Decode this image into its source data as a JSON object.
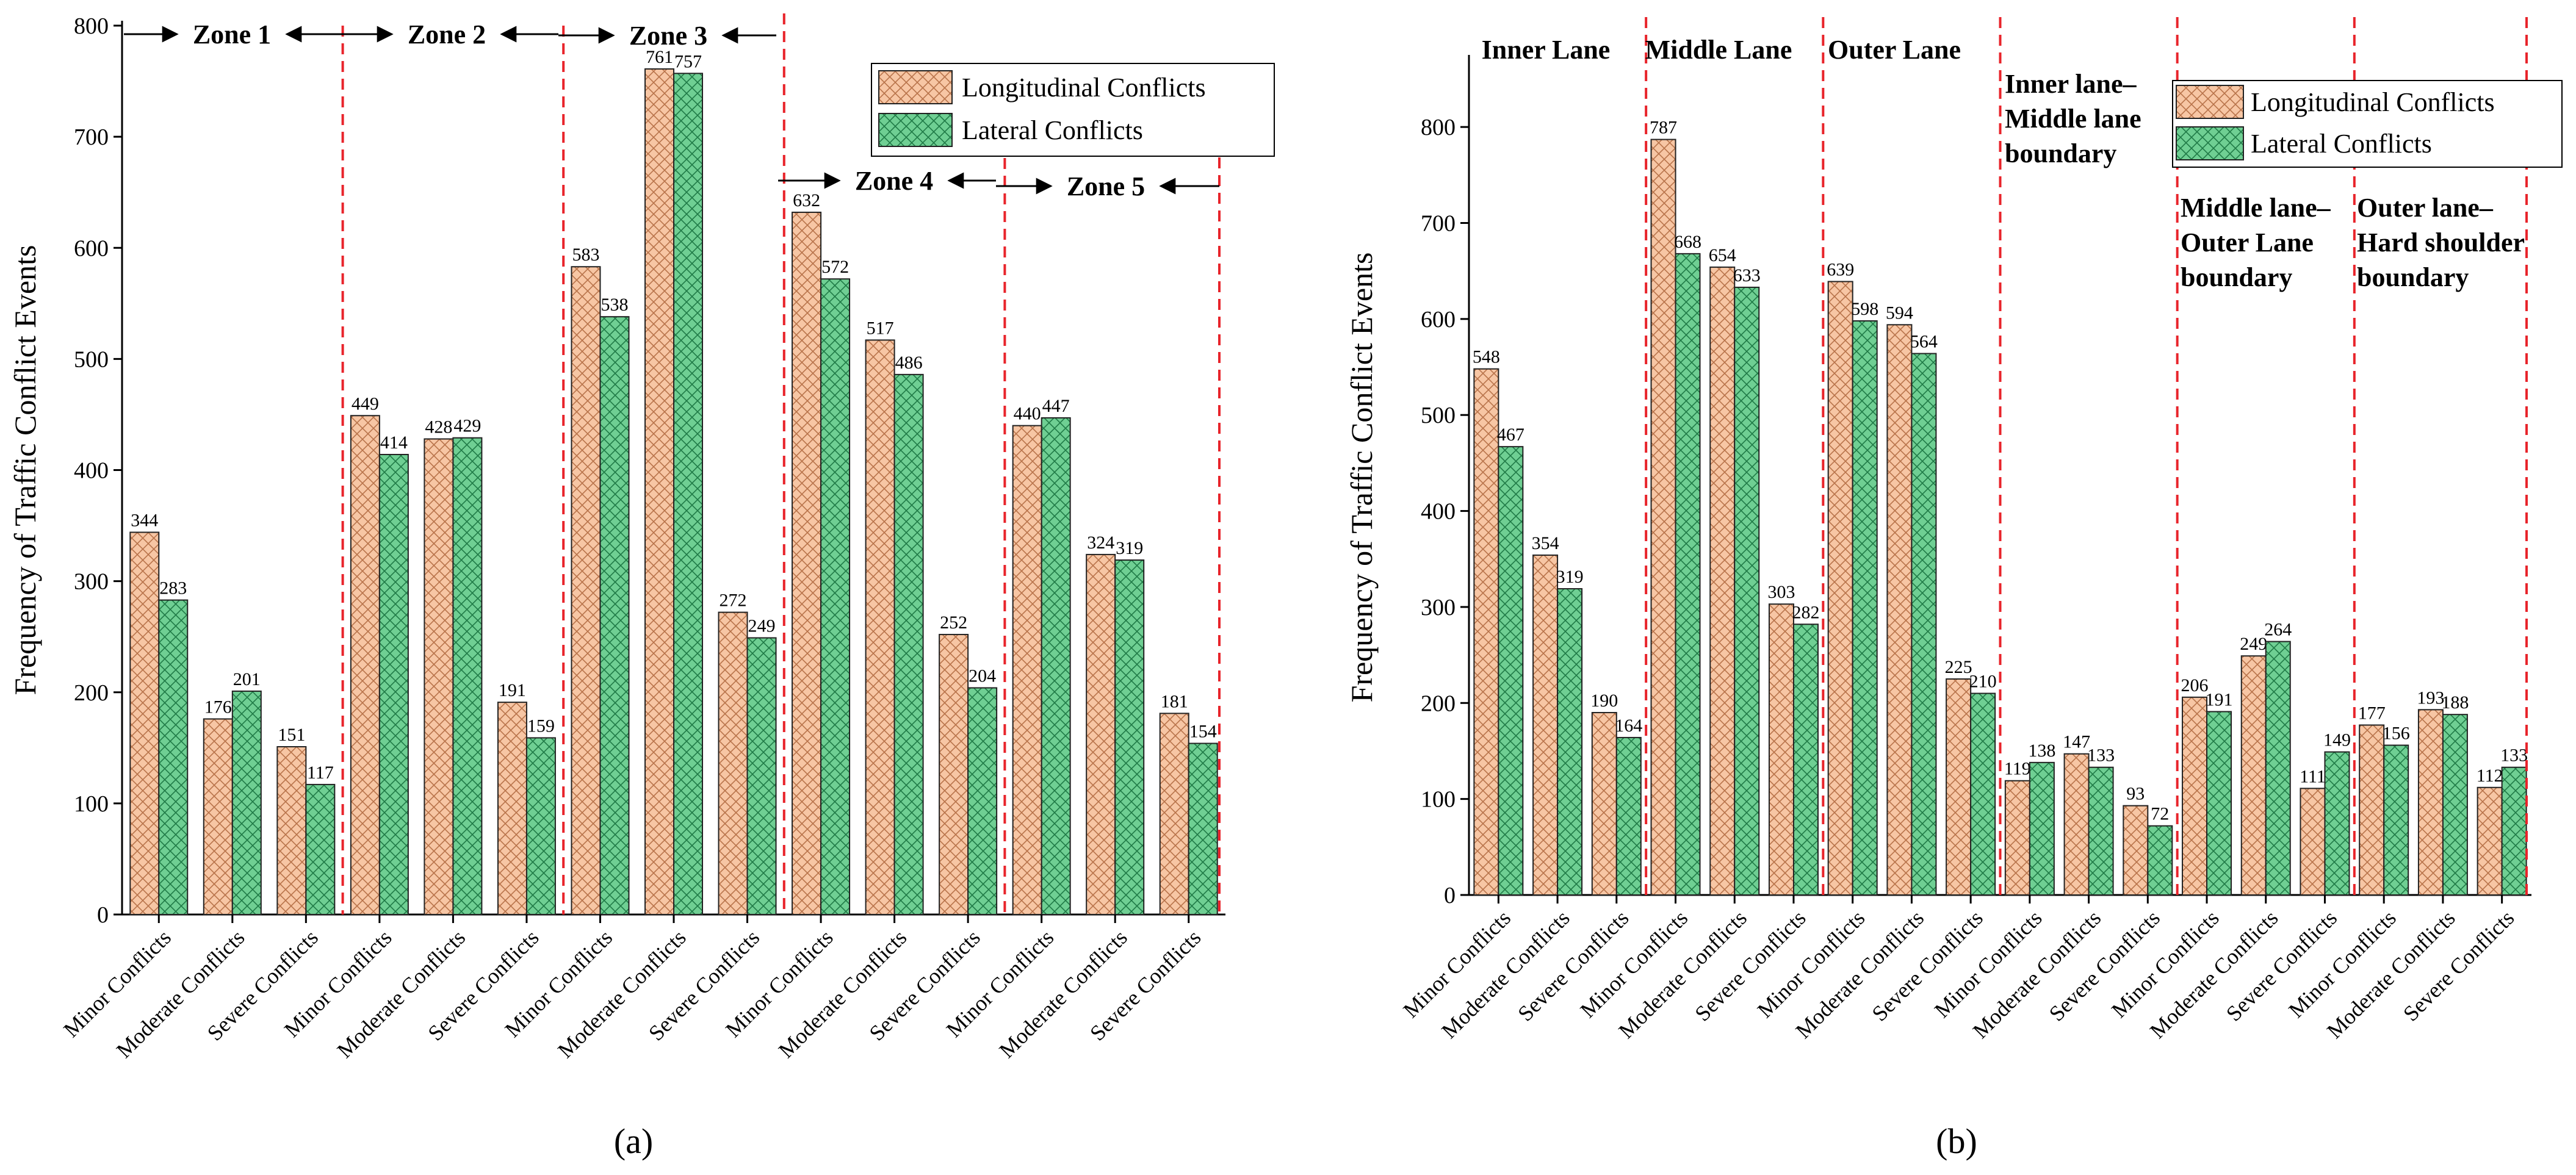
{
  "colors": {
    "longitudinal_fill": "#f7c6a4",
    "longitudinal_hatch": "#b8734a",
    "lateral_fill": "#6fcf93",
    "lateral_hatch": "#1f7a46",
    "divider": "#e8242b",
    "axis": "#000000"
  },
  "chart_data": [
    {
      "type": "bar",
      "panel_label": "(a)",
      "ylabel": "Frequency of Traffic Conflict Events",
      "ylim": [
        0,
        800
      ],
      "yticks": [
        0,
        100,
        200,
        300,
        400,
        500,
        600,
        700,
        800
      ],
      "legend": {
        "position": "top-right",
        "entries": [
          "Longitudinal Conflicts",
          "Lateral Conflicts"
        ]
      },
      "categories": [
        "Minor Conflicts",
        "Moderate Conflicts",
        "Severe Conflicts",
        "Minor Conflicts",
        "Moderate Conflicts",
        "Severe Conflicts",
        "Minor Conflicts",
        "Moderate Conflicts",
        "Severe Conflicts",
        "Minor Conflicts",
        "Moderate Conflicts",
        "Severe Conflicts",
        "Minor Conflicts",
        "Moderate Conflicts",
        "Severe Conflicts"
      ],
      "series": [
        {
          "name": "Longitudinal Conflicts",
          "values": [
            344,
            176,
            151,
            449,
            428,
            191,
            583,
            761,
            272,
            632,
            517,
            252,
            440,
            324,
            181
          ]
        },
        {
          "name": "Lateral Conflicts",
          "values": [
            283,
            201,
            117,
            414,
            429,
            159,
            538,
            757,
            249,
            572,
            486,
            204,
            447,
            319,
            154
          ]
        }
      ],
      "zones": [
        {
          "label": "Zone 1",
          "after_category": 2
        },
        {
          "label": "Zone 2",
          "after_category": 5
        },
        {
          "label": "Zone 3",
          "after_category": 8
        },
        {
          "label": "Zone 4",
          "after_category": 11
        },
        {
          "label": "Zone 5",
          "after_category": 14
        }
      ]
    },
    {
      "type": "bar",
      "panel_label": "(b)",
      "ylabel": "Frequency of Traffic Conflict Events",
      "ylim": [
        0,
        870
      ],
      "yticks": [
        0,
        100,
        200,
        300,
        400,
        500,
        600,
        700,
        800
      ],
      "legend": {
        "position": "top-right",
        "entries": [
          "Longitudinal Conflicts",
          "Lateral Conflicts"
        ]
      },
      "categories": [
        "Minor Conflicts",
        "Moderate Conflicts",
        "Severe Conflicts",
        "Minor Conflicts",
        "Moderate Conflicts",
        "Severe Conflicts",
        "Minor Conflicts",
        "Moderate Conflicts",
        "Severe Conflicts",
        "Minor Conflicts",
        "Moderate Conflicts",
        "Severe Conflicts",
        "Minor Conflicts",
        "Moderate Conflicts",
        "Severe Conflicts",
        "Minor Conflicts",
        "Moderate Conflicts",
        "Severe Conflicts"
      ],
      "series": [
        {
          "name": "Longitudinal Conflicts",
          "values": [
            548,
            354,
            190,
            787,
            654,
            303,
            639,
            594,
            225,
            119,
            147,
            93,
            206,
            249,
            111,
            177,
            193,
            112
          ]
        },
        {
          "name": "Lateral Conflicts",
          "values": [
            467,
            319,
            164,
            668,
            633,
            282,
            598,
            564,
            210,
            138,
            133,
            72,
            191,
            264,
            149,
            156,
            188,
            133
          ]
        }
      ],
      "groups": [
        {
          "lines": [
            "Inner  Lane"
          ]
        },
        {
          "lines": [
            "Middle Lane"
          ]
        },
        {
          "lines": [
            "Outer Lane"
          ]
        },
        {
          "lines": [
            "Inner lane–",
            "Middle lane",
            "boundary"
          ]
        },
        {
          "lines": [
            "Middle lane–",
            "Outer Lane",
            "boundary"
          ]
        },
        {
          "lines": [
            "Outer lane–",
            "Hard shoulder",
            "boundary"
          ]
        }
      ]
    }
  ]
}
